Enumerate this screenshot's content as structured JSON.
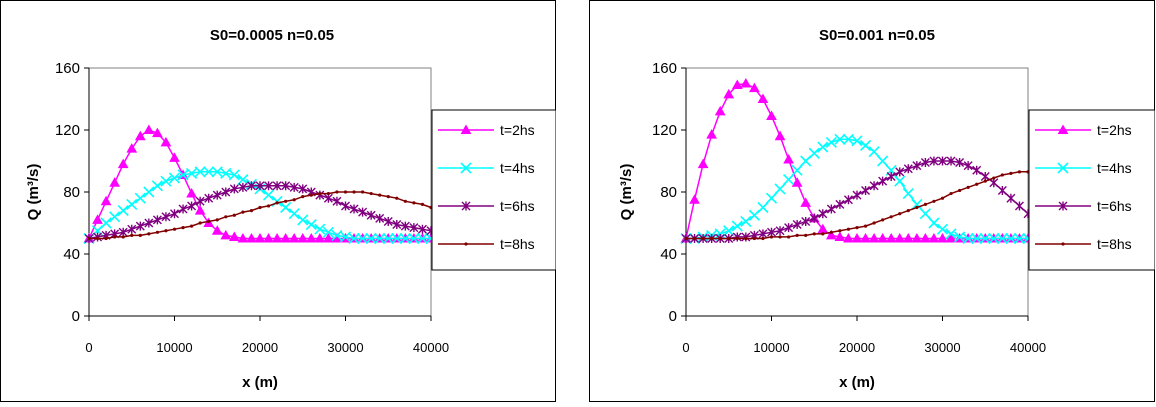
{
  "chart_data": [
    {
      "type": "line",
      "title": "S0=0.0005 n=0.05",
      "xlabel": "x (m)",
      "ylabel": "Q (m³/s)",
      "xlim": [
        0,
        40000
      ],
      "ylim": [
        0,
        160
      ],
      "xticks": [
        "0",
        "10000",
        "20000",
        "30000",
        "40000"
      ],
      "yticks": [
        "0",
        "40",
        "80",
        "120",
        "160"
      ],
      "grid": false,
      "legend_position": "right",
      "series": [
        {
          "name": "t=2hs",
          "color": "#ff00ff",
          "marker": "triangle",
          "x": [
            0,
            1000,
            2000,
            3000,
            4000,
            5000,
            6000,
            7000,
            8000,
            9000,
            10000,
            11000,
            12000,
            13000,
            14000,
            15000,
            16000,
            17000,
            18000,
            19000,
            20000,
            21000,
            22000,
            23000,
            24000,
            25000,
            26000,
            27000,
            28000,
            29000,
            30000,
            31000,
            32000,
            33000,
            34000,
            35000,
            36000,
            37000,
            38000,
            39000,
            40000
          ],
          "values": [
            50,
            62,
            74,
            86,
            98,
            108,
            116,
            120,
            118,
            112,
            102,
            91,
            79,
            68,
            60,
            55,
            52,
            51,
            50,
            50,
            50,
            50,
            50,
            50,
            50,
            50,
            50,
            50,
            50,
            50,
            50,
            50,
            50,
            50,
            50,
            50,
            50,
            50,
            50,
            50,
            50
          ]
        },
        {
          "name": "t=4hs",
          "color": "#00ffff",
          "marker": "x",
          "x": [
            0,
            1000,
            2000,
            3000,
            4000,
            5000,
            6000,
            7000,
            8000,
            9000,
            10000,
            11000,
            12000,
            13000,
            14000,
            15000,
            16000,
            17000,
            18000,
            19000,
            20000,
            21000,
            22000,
            23000,
            24000,
            25000,
            26000,
            27000,
            28000,
            29000,
            30000,
            31000,
            32000,
            33000,
            34000,
            35000,
            36000,
            37000,
            38000,
            39000,
            40000
          ],
          "values": [
            50,
            55,
            60,
            64,
            68,
            72,
            76,
            80,
            84,
            87,
            89,
            91,
            92,
            93,
            93,
            93,
            92,
            91,
            88,
            85,
            82,
            78,
            74,
            70,
            66,
            62,
            59,
            56,
            54,
            52,
            51,
            50,
            50,
            50,
            50,
            50,
            50,
            50,
            50,
            50,
            50
          ]
        },
        {
          "name": "t=6hs",
          "color": "#800080",
          "marker": "star",
          "x": [
            0,
            1000,
            2000,
            3000,
            4000,
            5000,
            6000,
            7000,
            8000,
            9000,
            10000,
            11000,
            12000,
            13000,
            14000,
            15000,
            16000,
            17000,
            18000,
            19000,
            20000,
            21000,
            22000,
            23000,
            24000,
            25000,
            26000,
            27000,
            28000,
            29000,
            30000,
            31000,
            32000,
            33000,
            34000,
            35000,
            36000,
            37000,
            38000,
            39000,
            40000
          ],
          "values": [
            50,
            51,
            52,
            53,
            54,
            56,
            58,
            60,
            62,
            64,
            66,
            69,
            71,
            74,
            76,
            78,
            80,
            82,
            83,
            84,
            84,
            84,
            84,
            84,
            83,
            82,
            80,
            78,
            76,
            74,
            71,
            69,
            67,
            65,
            63,
            61,
            59,
            58,
            57,
            56,
            55
          ]
        },
        {
          "name": "t=8hs",
          "color": "#800000",
          "marker": "dot",
          "x": [
            0,
            1000,
            2000,
            3000,
            4000,
            5000,
            6000,
            7000,
            8000,
            9000,
            10000,
            11000,
            12000,
            13000,
            14000,
            15000,
            16000,
            17000,
            18000,
            19000,
            20000,
            21000,
            22000,
            23000,
            24000,
            25000,
            26000,
            27000,
            28000,
            29000,
            30000,
            31000,
            32000,
            33000,
            34000,
            35000,
            36000,
            37000,
            38000,
            39000,
            40000
          ],
          "values": [
            50,
            50,
            50,
            51,
            51,
            52,
            52,
            53,
            54,
            55,
            56,
            57,
            58,
            60,
            61,
            62,
            64,
            65,
            67,
            68,
            70,
            71,
            73,
            74,
            75,
            77,
            78,
            79,
            79,
            80,
            80,
            80,
            80,
            79,
            78,
            77,
            76,
            74,
            73,
            72,
            70
          ]
        }
      ]
    },
    {
      "type": "line",
      "title": "S0=0.001 n=0.05",
      "xlabel": "x (m)",
      "ylabel": "Q (m³/s)",
      "xlim": [
        0,
        40000
      ],
      "ylim": [
        0,
        160
      ],
      "xticks": [
        "0",
        "10000",
        "20000",
        "30000",
        "40000"
      ],
      "yticks": [
        "0",
        "40",
        "80",
        "120",
        "160"
      ],
      "grid": false,
      "legend_position": "right",
      "series": [
        {
          "name": "t=2hs",
          "color": "#ff00ff",
          "marker": "triangle",
          "x": [
            0,
            1000,
            2000,
            3000,
            4000,
            5000,
            6000,
            7000,
            8000,
            9000,
            10000,
            11000,
            12000,
            13000,
            14000,
            15000,
            16000,
            17000,
            18000,
            19000,
            20000,
            21000,
            22000,
            23000,
            24000,
            25000,
            26000,
            27000,
            28000,
            29000,
            30000,
            31000,
            32000,
            33000,
            34000,
            35000,
            36000,
            37000,
            38000,
            39000,
            40000
          ],
          "values": [
            50,
            75,
            98,
            117,
            132,
            143,
            149,
            150,
            147,
            140,
            129,
            116,
            101,
            86,
            73,
            63,
            56,
            52,
            51,
            50,
            50,
            50,
            50,
            50,
            50,
            50,
            50,
            50,
            50,
            50,
            50,
            50,
            50,
            50,
            50,
            50,
            50,
            50,
            50,
            50,
            50
          ]
        },
        {
          "name": "t=4hs",
          "color": "#00ffff",
          "marker": "x",
          "x": [
            0,
            1000,
            2000,
            3000,
            4000,
            5000,
            6000,
            7000,
            8000,
            9000,
            10000,
            11000,
            12000,
            13000,
            14000,
            15000,
            16000,
            17000,
            18000,
            19000,
            20000,
            21000,
            22000,
            23000,
            24000,
            25000,
            26000,
            27000,
            28000,
            29000,
            30000,
            31000,
            32000,
            33000,
            34000,
            35000,
            36000,
            37000,
            38000,
            39000,
            40000
          ],
          "values": [
            50,
            50,
            51,
            52,
            53,
            55,
            58,
            61,
            65,
            70,
            76,
            82,
            88,
            94,
            100,
            105,
            109,
            112,
            114,
            114,
            113,
            110,
            106,
            100,
            94,
            87,
            79,
            72,
            66,
            60,
            56,
            53,
            51,
            50,
            50,
            50,
            50,
            50,
            50,
            50,
            50
          ]
        },
        {
          "name": "t=6hs",
          "color": "#800080",
          "marker": "star",
          "x": [
            0,
            1000,
            2000,
            3000,
            4000,
            5000,
            6000,
            7000,
            8000,
            9000,
            10000,
            11000,
            12000,
            13000,
            14000,
            15000,
            16000,
            17000,
            18000,
            19000,
            20000,
            21000,
            22000,
            23000,
            24000,
            25000,
            26000,
            27000,
            28000,
            29000,
            30000,
            31000,
            32000,
            33000,
            34000,
            35000,
            36000,
            37000,
            38000,
            39000,
            40000
          ],
          "values": [
            50,
            50,
            50,
            50,
            50,
            50,
            51,
            51,
            52,
            53,
            54,
            55,
            57,
            59,
            61,
            63,
            66,
            69,
            72,
            75,
            78,
            81,
            84,
            87,
            90,
            93,
            95,
            97,
            99,
            100,
            100,
            100,
            99,
            97,
            94,
            90,
            86,
            81,
            76,
            71,
            66
          ]
        },
        {
          "name": "t=8hs",
          "color": "#800000",
          "marker": "dot",
          "x": [
            0,
            1000,
            2000,
            3000,
            4000,
            5000,
            6000,
            7000,
            8000,
            9000,
            10000,
            11000,
            12000,
            13000,
            14000,
            15000,
            16000,
            17000,
            18000,
            19000,
            20000,
            21000,
            22000,
            23000,
            24000,
            25000,
            26000,
            27000,
            28000,
            29000,
            30000,
            31000,
            32000,
            33000,
            34000,
            35000,
            36000,
            37000,
            38000,
            39000,
            40000
          ],
          "values": [
            50,
            50,
            50,
            50,
            50,
            50,
            50,
            50,
            50,
            50,
            51,
            51,
            51,
            52,
            52,
            53,
            53,
            54,
            55,
            56,
            57,
            58,
            60,
            62,
            64,
            66,
            68,
            70,
            72,
            74,
            76,
            79,
            81,
            83,
            85,
            87,
            89,
            91,
            92,
            93,
            93
          ]
        }
      ]
    }
  ]
}
